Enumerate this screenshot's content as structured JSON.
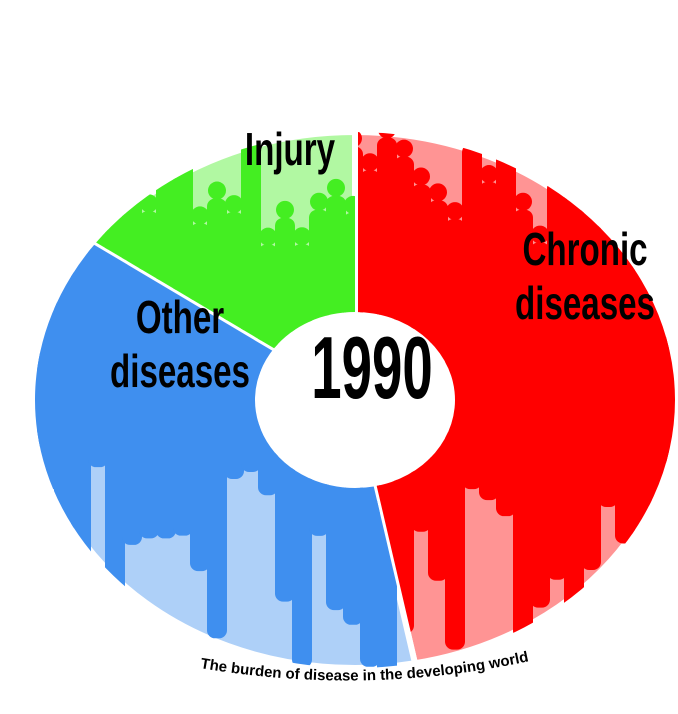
{
  "chart_data": {
    "type": "donut",
    "title": "The burden of disease in the developing world",
    "center_label": "1990",
    "categories": [
      "Chronic diseases",
      "Other diseases",
      "Injury"
    ],
    "values": [
      47,
      38,
      15
    ],
    "colors": [
      "#ff0000",
      "#3f8fef",
      "#44ee22"
    ]
  }
}
